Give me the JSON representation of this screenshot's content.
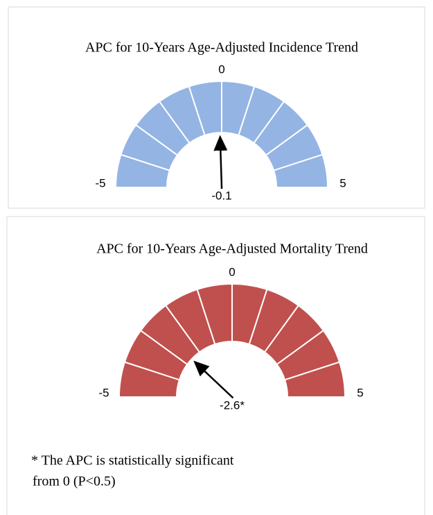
{
  "chart_data": [
    {
      "type": "gauge",
      "title": "APC for 10-Years Age-Adjusted Incidence Trend",
      "color": "#94b4e4",
      "ylim": [
        -5,
        5
      ],
      "yticks": [
        -5,
        0,
        5
      ],
      "values": [
        -0.1
      ]
    },
    {
      "type": "gauge",
      "title": "APC for 10-Years Age-Adjusted Mortality Trend",
      "color": "#c0504d",
      "ylim": [
        -5,
        5
      ],
      "yticks": [
        -5,
        0,
        5
      ],
      "values": [
        -2.6
      ],
      "value_labels": [
        "-2.6*"
      ]
    }
  ],
  "footnote": [
    "* The APC is statistically significant",
    "from 0 (P<0.5)"
  ]
}
